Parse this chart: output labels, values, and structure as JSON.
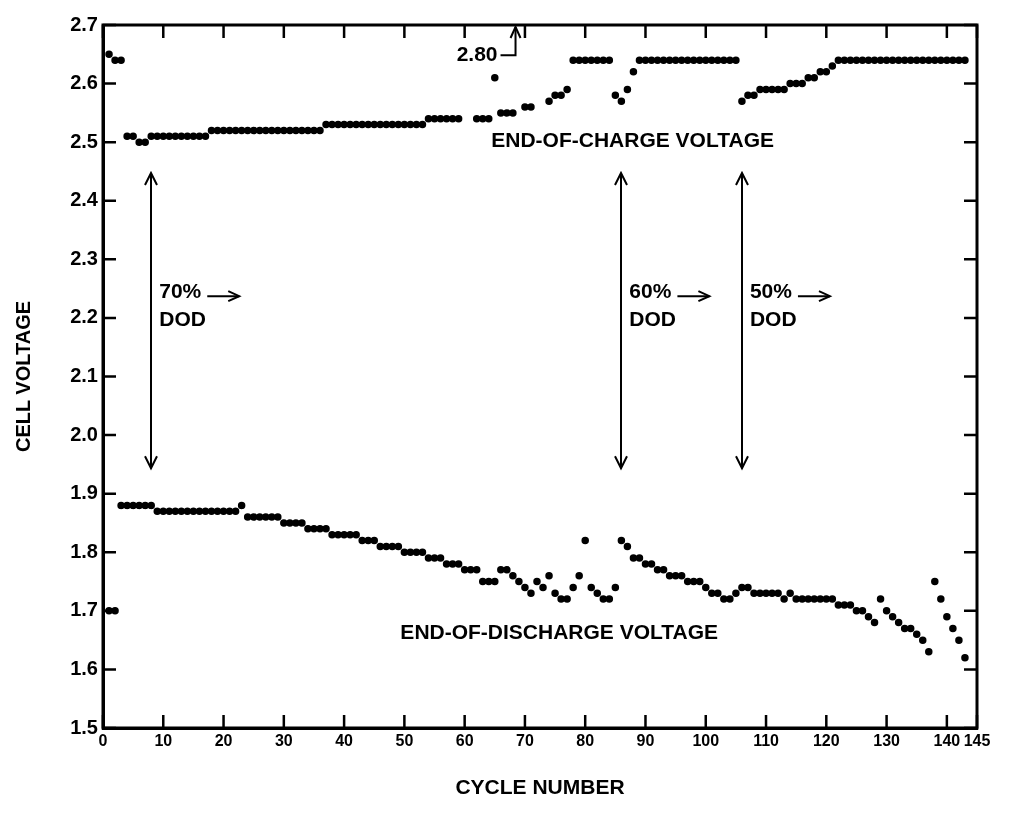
{
  "chart_data": {
    "type": "scatter",
    "xlabel": "CYCLE NUMBER",
    "ylabel": "CELL VOLTAGE",
    "marker": "circle",
    "xlim": [
      0,
      145
    ],
    "xticks": [
      0,
      10,
      20,
      30,
      40,
      50,
      60,
      70,
      80,
      90,
      100,
      110,
      120,
      130,
      140,
      145
    ],
    "ylim": [
      1.5,
      2.7
    ],
    "yticks": [
      {
        "value": 1.5,
        "label": "1.5"
      },
      {
        "value": 1.6,
        "label": "1.6"
      },
      {
        "value": 1.7,
        "label": "1.7"
      },
      {
        "value": 1.8,
        "label": "1.8"
      },
      {
        "value": 1.9,
        "label": "1.9"
      },
      {
        "value": 2.0,
        "label": "2.0"
      },
      {
        "value": 2.1,
        "label": "2.1"
      },
      {
        "value": 2.2,
        "label": "2.2"
      },
      {
        "value": 2.3,
        "label": "2.3"
      },
      {
        "value": 2.4,
        "label": "2.4"
      },
      {
        "value": 2.5,
        "label": "2.5"
      },
      {
        "value": 2.6,
        "label": "2.6"
      },
      {
        "value": 2.7,
        "label": "2.7"
      }
    ],
    "series": [
      {
        "name": "END-OF-CHARGE VOLTAGE",
        "color": "#000000",
        "x": [
          1,
          2,
          3,
          4,
          5,
          6,
          7,
          8,
          9,
          10,
          11,
          12,
          13,
          14,
          15,
          16,
          17,
          18,
          19,
          20,
          21,
          22,
          23,
          24,
          25,
          26,
          27,
          28,
          29,
          30,
          31,
          32,
          33,
          34,
          35,
          36,
          37,
          38,
          39,
          40,
          41,
          42,
          43,
          44,
          45,
          46,
          47,
          48,
          49,
          50,
          51,
          52,
          53,
          54,
          55,
          56,
          57,
          58,
          59,
          62,
          63,
          64,
          65,
          66,
          67,
          68,
          70,
          71,
          74,
          75,
          76,
          77,
          78,
          79,
          80,
          81,
          82,
          83,
          84,
          85,
          86,
          87,
          88,
          89,
          90,
          91,
          92,
          93,
          94,
          95,
          96,
          97,
          98,
          99,
          100,
          101,
          102,
          103,
          104,
          105,
          106,
          107,
          108,
          109,
          110,
          111,
          112,
          113,
          114,
          115,
          116,
          117,
          118,
          119,
          120,
          121,
          122,
          123,
          124,
          125,
          126,
          127,
          128,
          129,
          130,
          131,
          132,
          133,
          134,
          135,
          136,
          137,
          138,
          139,
          140,
          141,
          142,
          143
        ],
        "values": [
          2.65,
          2.64,
          2.64,
          2.51,
          2.51,
          2.5,
          2.5,
          2.51,
          2.51,
          2.51,
          2.51,
          2.51,
          2.51,
          2.51,
          2.51,
          2.51,
          2.51,
          2.52,
          2.52,
          2.52,
          2.52,
          2.52,
          2.52,
          2.52,
          2.52,
          2.52,
          2.52,
          2.52,
          2.52,
          2.52,
          2.52,
          2.52,
          2.52,
          2.52,
          2.52,
          2.52,
          2.53,
          2.53,
          2.53,
          2.53,
          2.53,
          2.53,
          2.53,
          2.53,
          2.53,
          2.53,
          2.53,
          2.53,
          2.53,
          2.53,
          2.53,
          2.53,
          2.53,
          2.54,
          2.54,
          2.54,
          2.54,
          2.54,
          2.54,
          2.54,
          2.54,
          2.54,
          2.61,
          2.55,
          2.55,
          2.55,
          2.56,
          2.56,
          2.57,
          2.58,
          2.58,
          2.59,
          2.64,
          2.64,
          2.64,
          2.64,
          2.64,
          2.64,
          2.64,
          2.58,
          2.57,
          2.59,
          2.62,
          2.64,
          2.64,
          2.64,
          2.64,
          2.64,
          2.64,
          2.64,
          2.64,
          2.64,
          2.64,
          2.64,
          2.64,
          2.64,
          2.64,
          2.64,
          2.64,
          2.64,
          2.57,
          2.58,
          2.58,
          2.59,
          2.59,
          2.59,
          2.59,
          2.59,
          2.6,
          2.6,
          2.6,
          2.61,
          2.61,
          2.62,
          2.62,
          2.63,
          2.64,
          2.64,
          2.64,
          2.64,
          2.64,
          2.64,
          2.64,
          2.64,
          2.64,
          2.64,
          2.64,
          2.64,
          2.64,
          2.64,
          2.64,
          2.64,
          2.64,
          2.64,
          2.64,
          2.64,
          2.64,
          2.64
        ]
      },
      {
        "name": "END-OF-DISCHARGE VOLTAGE",
        "color": "#000000",
        "x": [
          1,
          2,
          3,
          4,
          5,
          6,
          7,
          8,
          9,
          10,
          11,
          12,
          13,
          14,
          15,
          16,
          17,
          18,
          19,
          20,
          21,
          22,
          23,
          24,
          25,
          26,
          27,
          28,
          29,
          30,
          31,
          32,
          33,
          34,
          35,
          36,
          37,
          38,
          39,
          40,
          41,
          42,
          43,
          44,
          45,
          46,
          47,
          48,
          49,
          50,
          51,
          52,
          53,
          54,
          55,
          56,
          57,
          58,
          59,
          60,
          61,
          62,
          63,
          64,
          65,
          66,
          67,
          68,
          69,
          70,
          71,
          72,
          73,
          74,
          75,
          76,
          77,
          78,
          79,
          80,
          81,
          82,
          83,
          84,
          85,
          86,
          87,
          88,
          89,
          90,
          91,
          92,
          93,
          94,
          95,
          96,
          97,
          98,
          99,
          100,
          101,
          102,
          103,
          104,
          105,
          106,
          107,
          108,
          109,
          110,
          111,
          112,
          113,
          114,
          115,
          116,
          117,
          118,
          119,
          120,
          121,
          122,
          123,
          124,
          125,
          126,
          127,
          128,
          129,
          130,
          131,
          132,
          133,
          134,
          135,
          136,
          137,
          138,
          139,
          140,
          141,
          142,
          143
        ],
        "values": [
          1.7,
          1.7,
          1.88,
          1.88,
          1.88,
          1.88,
          1.88,
          1.88,
          1.87,
          1.87,
          1.87,
          1.87,
          1.87,
          1.87,
          1.87,
          1.87,
          1.87,
          1.87,
          1.87,
          1.87,
          1.87,
          1.87,
          1.88,
          1.86,
          1.86,
          1.86,
          1.86,
          1.86,
          1.86,
          1.85,
          1.85,
          1.85,
          1.85,
          1.84,
          1.84,
          1.84,
          1.84,
          1.83,
          1.83,
          1.83,
          1.83,
          1.83,
          1.82,
          1.82,
          1.82,
          1.81,
          1.81,
          1.81,
          1.81,
          1.8,
          1.8,
          1.8,
          1.8,
          1.79,
          1.79,
          1.79,
          1.78,
          1.78,
          1.78,
          1.77,
          1.77,
          1.77,
          1.75,
          1.75,
          1.75,
          1.77,
          1.77,
          1.76,
          1.75,
          1.74,
          1.73,
          1.75,
          1.74,
          1.76,
          1.73,
          1.72,
          1.72,
          1.74,
          1.76,
          1.82,
          1.74,
          1.73,
          1.72,
          1.72,
          1.74,
          1.82,
          1.81,
          1.79,
          1.79,
          1.78,
          1.78,
          1.77,
          1.77,
          1.76,
          1.76,
          1.76,
          1.75,
          1.75,
          1.75,
          1.74,
          1.73,
          1.73,
          1.72,
          1.72,
          1.73,
          1.74,
          1.74,
          1.73,
          1.73,
          1.73,
          1.73,
          1.73,
          1.72,
          1.73,
          1.72,
          1.72,
          1.72,
          1.72,
          1.72,
          1.72,
          1.72,
          1.71,
          1.71,
          1.71,
          1.7,
          1.7,
          1.69,
          1.68,
          1.72,
          1.7,
          1.69,
          1.68,
          1.67,
          1.67,
          1.66,
          1.65,
          1.63,
          1.75,
          1.72,
          1.69,
          1.67,
          1.65,
          1.62
        ]
      }
    ],
    "annotations": [
      "2.80"
    ],
    "ref_lines": [
      {
        "axis": "x",
        "value": 8,
        "label": "70%\nDOD"
      },
      {
        "axis": "x",
        "value": 86,
        "label": "60%\nDOD"
      },
      {
        "axis": "x",
        "value": 106,
        "label": "50%\nDOD"
      }
    ]
  }
}
